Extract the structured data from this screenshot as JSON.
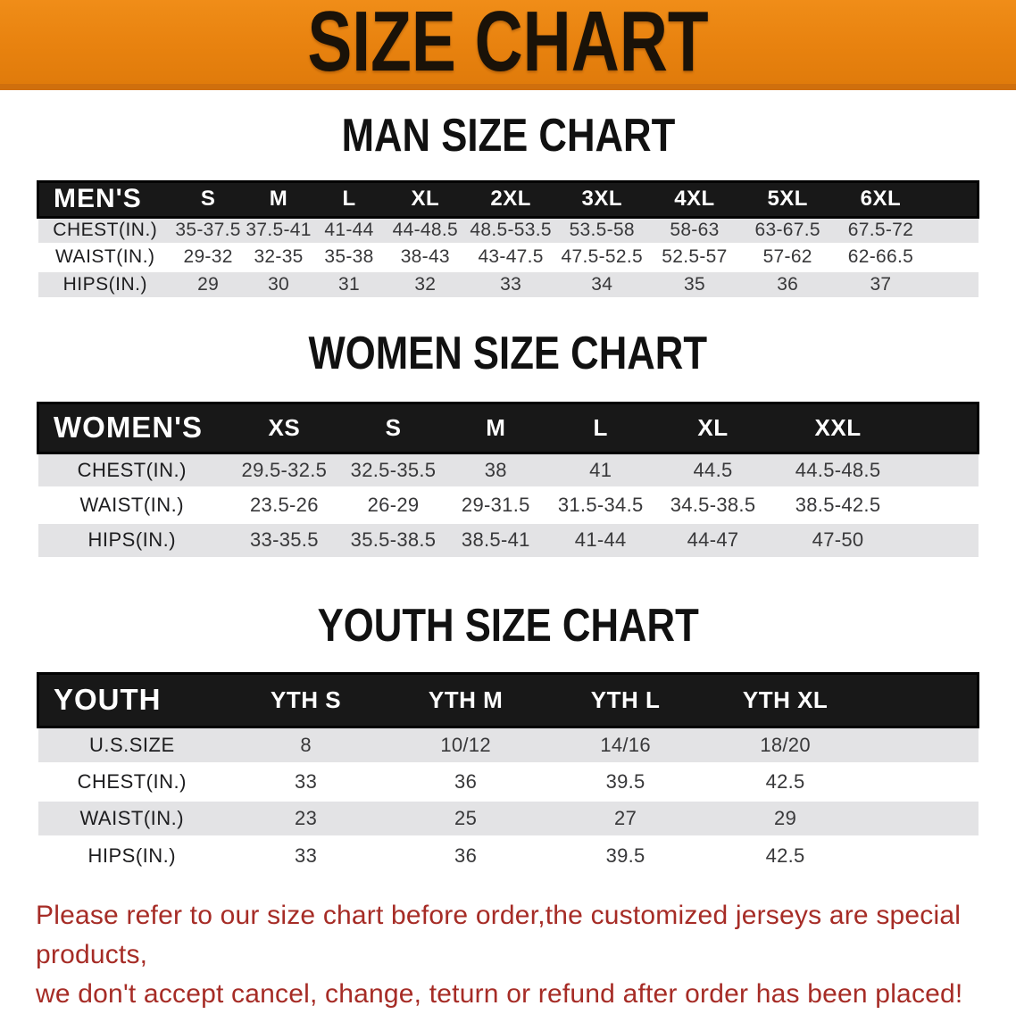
{
  "banner": {
    "title": "SIZE CHART"
  },
  "sections": [
    {
      "id": "men",
      "heading": "MAN SIZE CHART",
      "header_label": "MEN'S",
      "columns": [
        "S",
        "M",
        "L",
        "XL",
        "2XL",
        "3XL",
        "4XL",
        "5XL",
        "6XL"
      ],
      "rows": [
        {
          "label": "CHEST(IN.)",
          "values": [
            "35-37.5",
            "37.5-41",
            "41-44",
            "44-48.5",
            "48.5-53.5",
            "53.5-58",
            "58-63",
            "63-67.5",
            "67.5-72"
          ]
        },
        {
          "label": "WAIST(IN.)",
          "values": [
            "29-32",
            "32-35",
            "35-38",
            "38-43",
            "43-47.5",
            "47.5-52.5",
            "52.5-57",
            "57-62",
            "62-66.5"
          ]
        },
        {
          "label": "HIPS(IN.)",
          "values": [
            "29",
            "30",
            "31",
            "32",
            "33",
            "34",
            "35",
            "36",
            "37"
          ]
        }
      ]
    },
    {
      "id": "women",
      "heading": "WOMEN SIZE CHART",
      "header_label": "WOMEN'S",
      "columns": [
        "XS",
        "S",
        "M",
        "L",
        "XL",
        "XXL"
      ],
      "rows": [
        {
          "label": "CHEST(IN.)",
          "values": [
            "29.5-32.5",
            "32.5-35.5",
            "38",
            "41",
            "44.5",
            "44.5-48.5"
          ]
        },
        {
          "label": "WAIST(IN.)",
          "values": [
            "23.5-26",
            "26-29",
            "29-31.5",
            "31.5-34.5",
            "34.5-38.5",
            "38.5-42.5"
          ]
        },
        {
          "label": "HIPS(IN.)",
          "values": [
            "33-35.5",
            "35.5-38.5",
            "38.5-41",
            "41-44",
            "44-47",
            "47-50"
          ]
        }
      ]
    },
    {
      "id": "youth",
      "heading": "YOUTH SIZE CHART",
      "header_label": "YOUTH",
      "columns": [
        "YTH S",
        "YTH M",
        "YTH L",
        "YTH XL"
      ],
      "rows": [
        {
          "label": "U.S.SIZE",
          "values": [
            "8",
            "10/12",
            "14/16",
            "18/20"
          ]
        },
        {
          "label": "CHEST(IN.)",
          "values": [
            "33",
            "36",
            "39.5",
            "42.5"
          ]
        },
        {
          "label": "WAIST(IN.)",
          "values": [
            "23",
            "25",
            "27",
            "29"
          ]
        },
        {
          "label": "HIPS(IN.)",
          "values": [
            "33",
            "36",
            "39.5",
            "42.5"
          ]
        }
      ]
    }
  ],
  "disclaimer": {
    "line1": "Please refer to our size chart before order,the customized jerseys are special products,",
    "line2": "we don't accept cancel, change, teturn or refund after order has been placed!"
  },
  "colors": {
    "banner_bg": "#e8820f",
    "banner_bg_dark": "#cf6f0d",
    "header_black": "#181818",
    "row_gray": "#e3e3e5",
    "disclaimer_red": "#a62c26"
  }
}
